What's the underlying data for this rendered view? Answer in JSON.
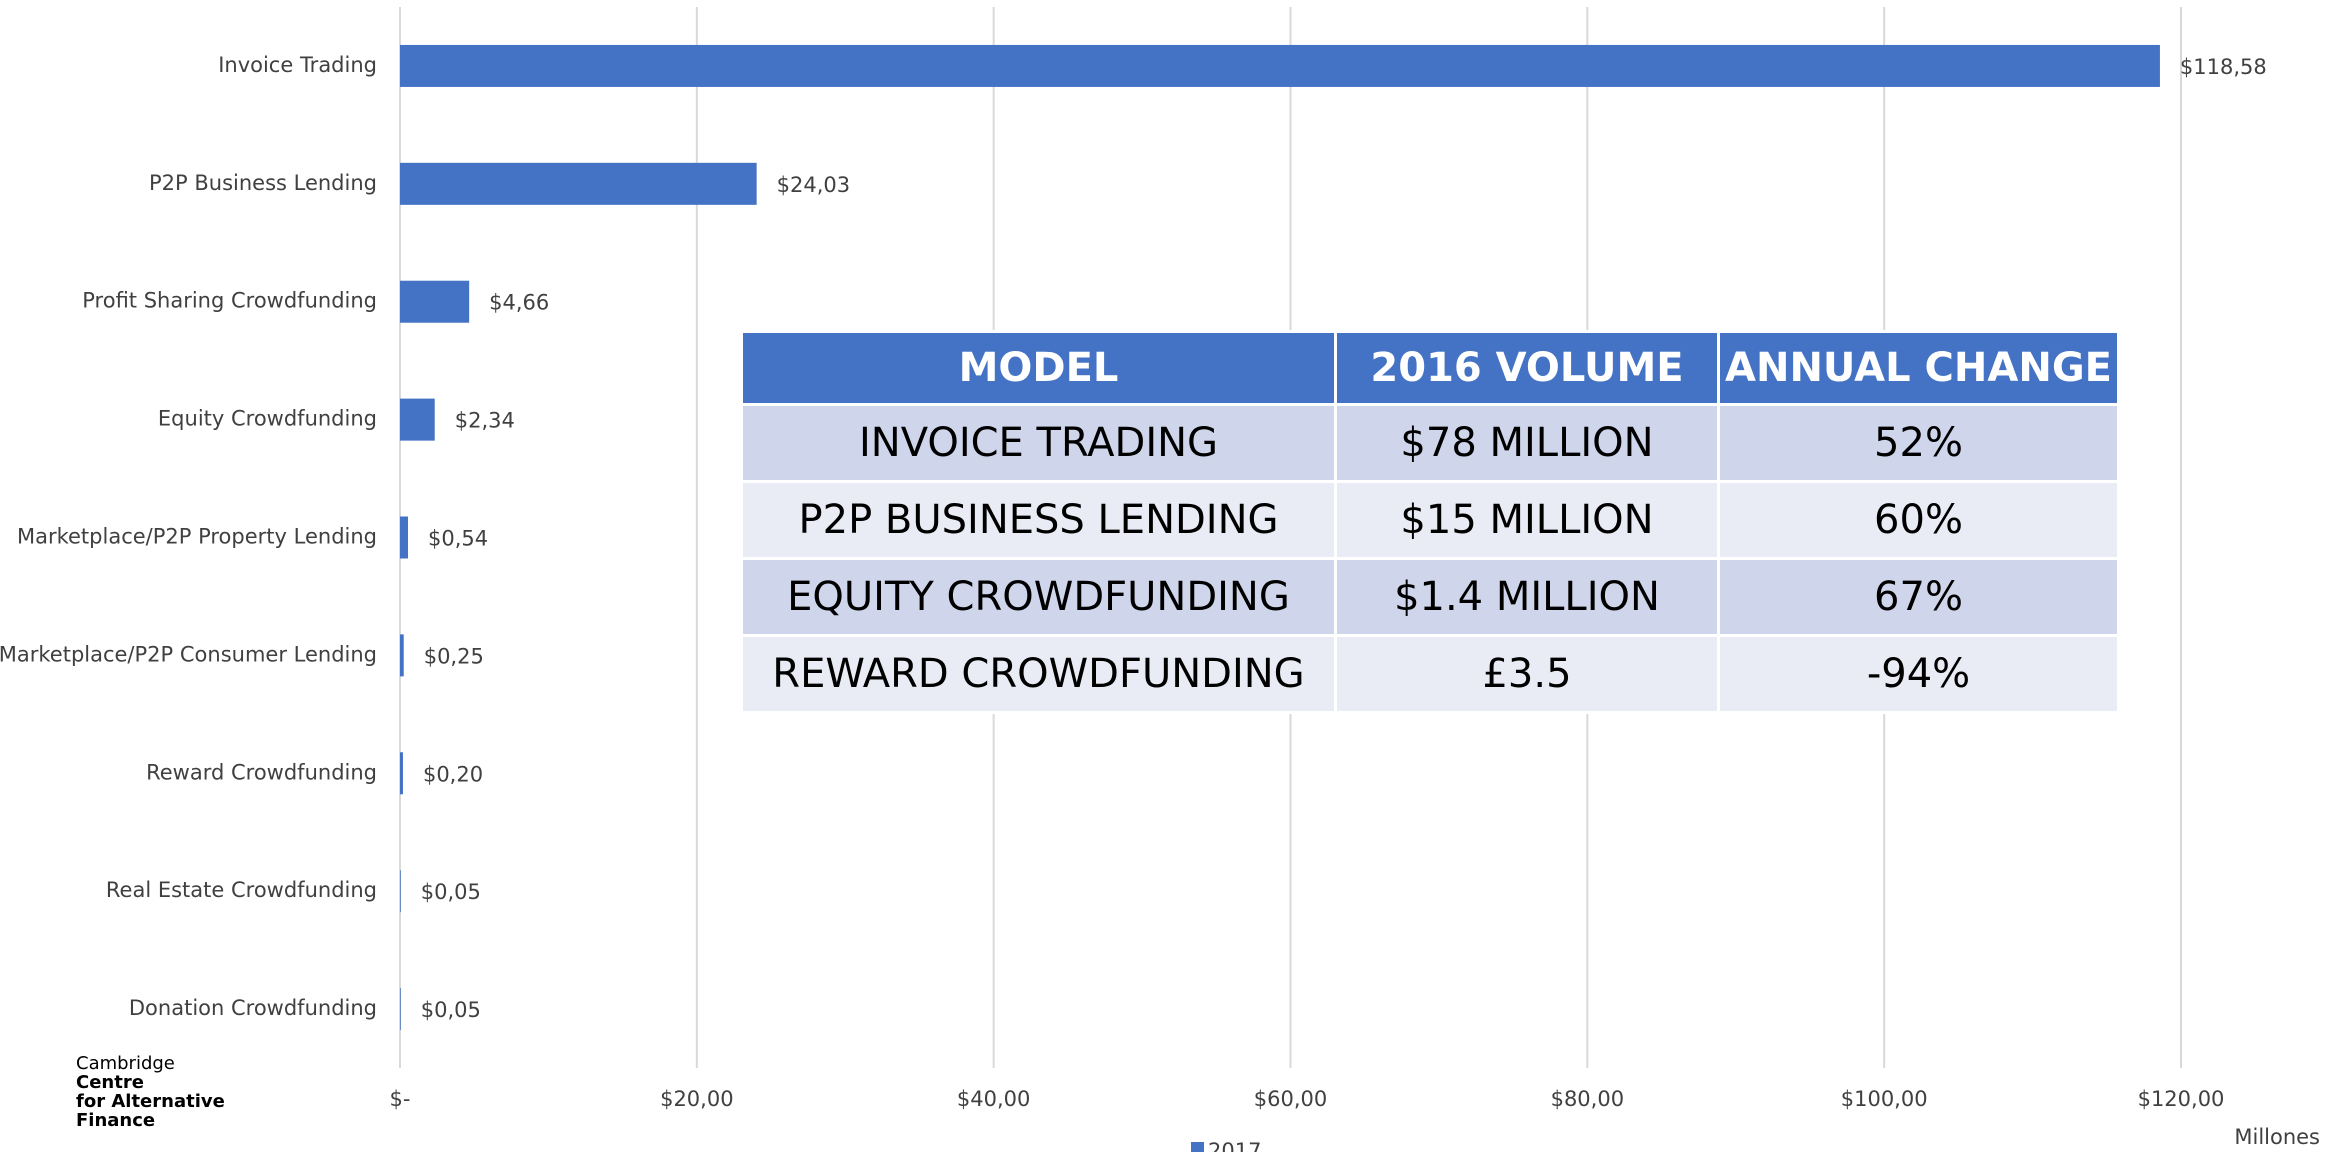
{
  "chart_data": {
    "type": "bar",
    "orientation": "horizontal",
    "categories": [
      "Invoice Trading",
      "P2P Business Lending",
      "Profit Sharing Crowdfunding",
      "Equity Crowdfunding",
      "Marketplace/P2P  Property Lending",
      "Marketplace/P2P  Consumer Lending",
      "Reward Crowdfunding",
      "Real Estate Crowdfunding",
      "Donation Crowdfunding"
    ],
    "series": [
      {
        "name": "2017",
        "color": "#4472c4",
        "values": [
          118.58,
          24.03,
          4.66,
          2.34,
          0.54,
          0.25,
          0.2,
          0.05,
          0.05
        ],
        "value_labels": [
          "$118,58",
          "$24,03",
          "$4,66",
          "$2,34",
          "$0,54",
          "$0,25",
          "$0,20",
          "$0,05",
          "$0,05"
        ]
      }
    ],
    "xlim": [
      0,
      120
    ],
    "xticks": [
      {
        "value": 0,
        "label": "$-"
      },
      {
        "value": 20,
        "label": "$20,00"
      },
      {
        "value": 40,
        "label": "$40,00"
      },
      {
        "value": 60,
        "label": "$60,00"
      },
      {
        "value": 80,
        "label": "$80,00"
      },
      {
        "value": 100,
        "label": "$100,00"
      },
      {
        "value": 120,
        "label": "$120,00"
      }
    ],
    "xlabel": "Millones",
    "grid": true,
    "legend": "bottom"
  },
  "table": {
    "header": [
      "MODEL",
      "2016 VOLUME",
      "ANNUAL CHANGE"
    ],
    "rows": [
      [
        "INVOICE TRADING",
        "$78 MILLION",
        "52%"
      ],
      [
        "P2P BUSINESS LENDING",
        "$15 MILLION",
        "60%"
      ],
      [
        "EQUITY CROWDFUNDING",
        "$1.4 MILLION",
        "67%"
      ],
      [
        "REWARD CROWDFUNDING",
        "£3.5",
        "-94%"
      ]
    ]
  },
  "logo": [
    "Cambridge",
    "Centre",
    "for Alternative",
    "Finance"
  ]
}
